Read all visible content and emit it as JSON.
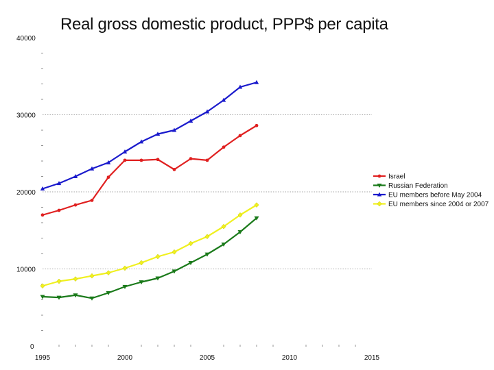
{
  "chart_data": {
    "type": "line",
    "title": "Real gross domestic product, PPP$ per capita",
    "xlabel": "",
    "ylabel": "",
    "xlim": [
      1995,
      2015
    ],
    "ylim": [
      0,
      40000
    ],
    "x_ticks": [
      1995,
      2000,
      2005,
      2010,
      2015
    ],
    "y_ticks": [
      0,
      10000,
      20000,
      30000,
      40000
    ],
    "gridlines_y": [
      10000,
      20000,
      30000
    ],
    "legend_position": "right",
    "x": [
      1995,
      1996,
      1997,
      1998,
      1999,
      2000,
      2001,
      2002,
      2003,
      2004,
      2005,
      2006,
      2007,
      2008
    ],
    "series": [
      {
        "name": "Israel",
        "color": "#e02020",
        "marker": "dot",
        "values": [
          17000,
          17600,
          18300,
          18900,
          21900,
          24100,
          24100,
          24200,
          22900,
          24300,
          24100,
          25800,
          27300,
          28600
        ]
      },
      {
        "name": "Russian Federation",
        "color": "#1a7a1a",
        "marker": "triangle-down",
        "values": [
          6400,
          6300,
          6600,
          6200,
          6900,
          7700,
          8300,
          8800,
          9700,
          10800,
          11900,
          13200,
          14800,
          16600
        ]
      },
      {
        "name": "EU members before May 2004",
        "color": "#1a1acc",
        "marker": "triangle-up",
        "values": [
          20400,
          21100,
          22000,
          23000,
          23800,
          25200,
          26500,
          27500,
          28000,
          29200,
          30400,
          31900,
          33600,
          34200
        ]
      },
      {
        "name": "EU members since 2004 or 2007",
        "color": "#f0f020",
        "marker": "diamond",
        "values": [
          7800,
          8400,
          8700,
          9100,
          9500,
          10100,
          10800,
          11600,
          12200,
          13300,
          14200,
          15500,
          17000,
          18300
        ]
      }
    ]
  }
}
